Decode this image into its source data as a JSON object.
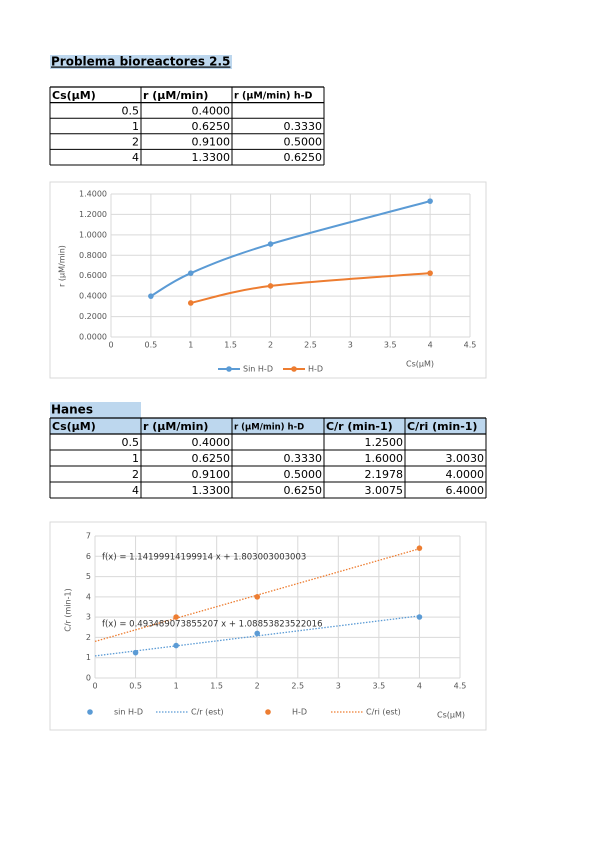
{
  "title": "Problema bioreactores 2.5",
  "table1": {
    "headers": [
      "Cs(μM)",
      "r (μM/min)",
      "r (μM/min) h-D"
    ],
    "rows": [
      [
        "0.5",
        "0.4000",
        null
      ],
      [
        "1",
        "0.6250",
        "0.3330"
      ],
      [
        "2",
        "0.9100",
        "0.5000"
      ],
      [
        "4",
        "1.3300",
        "0.6250"
      ]
    ]
  },
  "chart1": {
    "type": "line",
    "x_label": "Cs(μM)",
    "y_label": "r (μM/min)",
    "xlim": [
      0,
      4.5
    ],
    "xticks": [
      0,
      0.5,
      1,
      1.5,
      2,
      2.5,
      3,
      3.5,
      4,
      4.5
    ],
    "ylim": [
      0,
      1.4
    ],
    "yticks": [
      {
        "value": 0,
        "label": "0.0000"
      },
      {
        "value": 0.2,
        "label": "0.2000"
      },
      {
        "value": 0.4,
        "label": "0.4000"
      },
      {
        "value": 0.6,
        "label": "0.6000"
      },
      {
        "value": 0.8,
        "label": "0.8000"
      },
      {
        "value": 1.0,
        "label": "1.0000"
      },
      {
        "value": 1.2,
        "label": "1.2000"
      },
      {
        "value": 1.4,
        "label": "1.4000"
      }
    ],
    "grid": true,
    "legend": "bottom",
    "series": [
      {
        "name": "Sin H-D",
        "color": "#5b9bd5",
        "x": [
          0.5,
          1,
          2,
          4
        ],
        "values": [
          0.4,
          0.625,
          0.91,
          1.33
        ]
      },
      {
        "name": "H-D",
        "color": "#ed7d31",
        "x": [
          1,
          2,
          4
        ],
        "values": [
          0.333,
          0.5,
          0.625
        ]
      }
    ]
  },
  "hanes": {
    "title": "Hanes",
    "headers": [
      "Cs(μM)",
      "r (μM/min)",
      "r (μM/min) h-D",
      "C/r (min-1)",
      "C/ri (min-1)"
    ],
    "rows": [
      [
        "0.5",
        "0.4000",
        null,
        "1.2500",
        null
      ],
      [
        "1",
        "0.6250",
        "0.3330",
        "1.6000",
        "3.0030"
      ],
      [
        "2",
        "0.9100",
        "0.5000",
        "2.1978",
        "4.0000"
      ],
      [
        "4",
        "1.3300",
        "0.6250",
        "3.0075",
        "6.4000"
      ]
    ]
  },
  "chart2": {
    "type": "scatter",
    "x_label": "Cs(μM)",
    "y_label": "C/r (min-1)",
    "xlim": [
      0,
      4.5
    ],
    "xticks": [
      0,
      0.5,
      1,
      1.5,
      2,
      2.5,
      3,
      3.5,
      4,
      4.5
    ],
    "ylim": [
      0,
      7
    ],
    "yticks": [
      0,
      1,
      2,
      3,
      4,
      5,
      6,
      7
    ],
    "grid": true,
    "legend": "bottom",
    "series": [
      {
        "name": "sin H-D",
        "color": "#5b9bd5",
        "x": [
          0.5,
          1,
          2,
          4
        ],
        "values": [
          1.25,
          1.6,
          2.1978,
          3.0075
        ]
      },
      {
        "name": "H-D",
        "color": "#ed7d31",
        "x": [
          1,
          2,
          4
        ],
        "values": [
          3.003,
          4.0,
          6.4
        ]
      }
    ],
    "trendlines": [
      {
        "name": "C/r (est)",
        "color": "#5b9bd5",
        "slope": 0.493489073855207,
        "intercept": 1.08853823522016,
        "label": "f(x) = 0.493489073855207 x + 1.08853823522016"
      },
      {
        "name": "C/ri (est)",
        "color": "#ed7d31",
        "slope": 1.14199914199914,
        "intercept": 1.803003003003,
        "label": "f(x) = 1.14199914199914 x + 1.803003003003"
      }
    ]
  }
}
